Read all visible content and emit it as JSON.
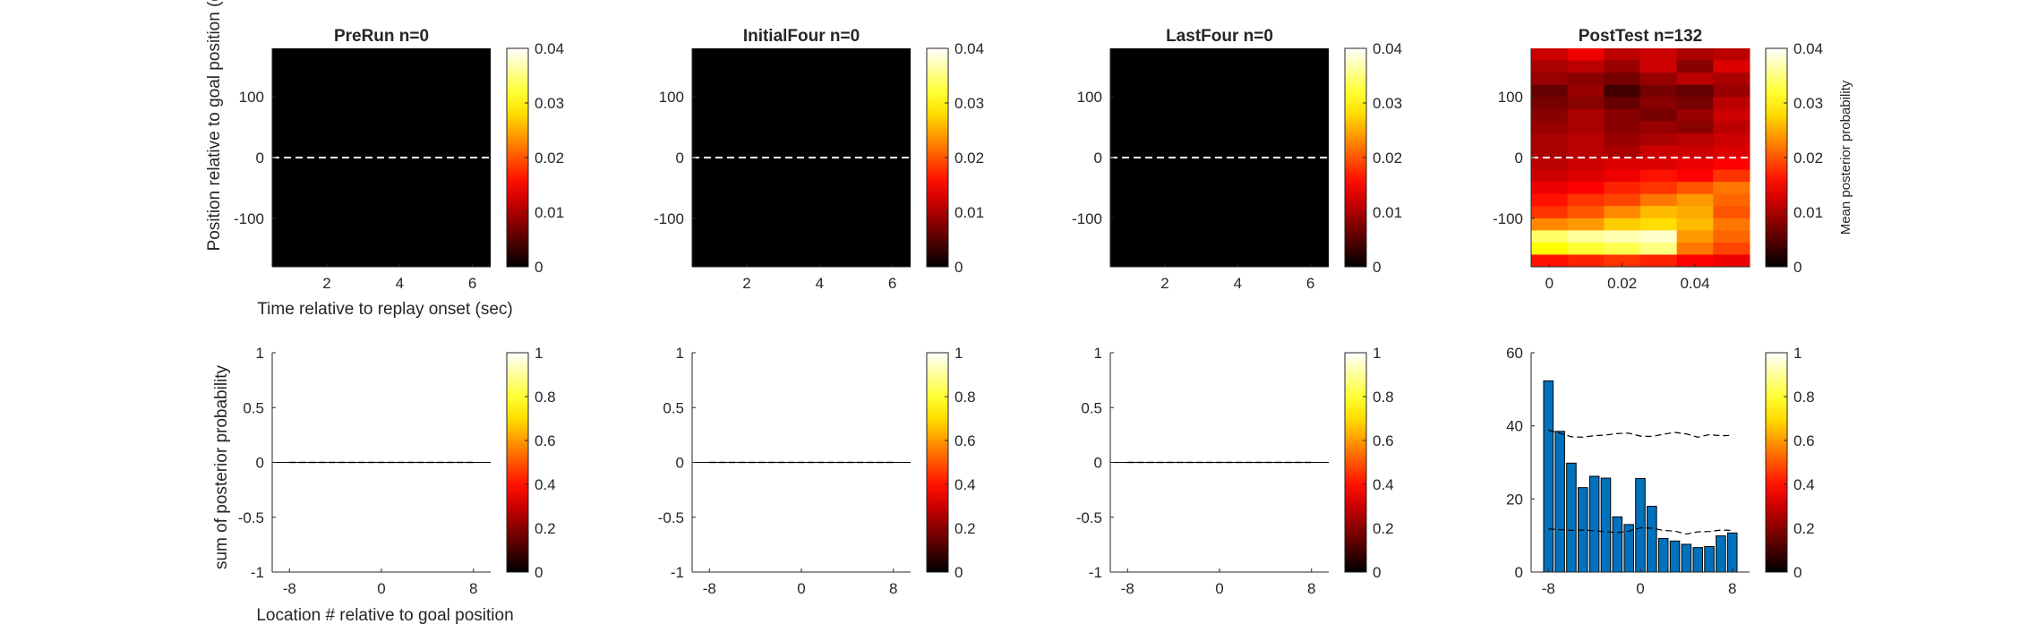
{
  "figure": {
    "ylabel_top": "Position relative to goal position (deg)",
    "xlabel_top": "Time relative to replay onset (sec)",
    "ylabel_bottom": "sum of posterior probability",
    "xlabel_bottom": "Location # relative to goal position",
    "colorbar_label": "Mean posterior probability"
  },
  "colors": {
    "bar": "#0072BD",
    "colormap": "hot",
    "baseline": "#ffffff"
  },
  "chart_data": [
    {
      "type": "heatmap",
      "title": "PreRun n=0",
      "x_ticks": [
        "2",
        "4",
        "6"
      ],
      "y_ticks": [
        "100",
        "0",
        "-100"
      ],
      "xlim": [
        0.5,
        6.5
      ],
      "ylim": [
        -180,
        180
      ],
      "baseline_y": 0,
      "cells": "all zero",
      "colorbar": {
        "ticks": [
          "0",
          "0.01",
          "0.02",
          "0.03",
          "0.04"
        ],
        "clim": [
          0,
          0.04
        ]
      }
    },
    {
      "type": "heatmap",
      "title": "InitialFour n=0",
      "x_ticks": [
        "2",
        "4",
        "6"
      ],
      "y_ticks": [
        "100",
        "0",
        "-100"
      ],
      "xlim": [
        0.5,
        6.5
      ],
      "ylim": [
        -180,
        180
      ],
      "baseline_y": 0,
      "cells": "all zero",
      "colorbar": {
        "ticks": [
          "0",
          "0.01",
          "0.02",
          "0.03",
          "0.04"
        ],
        "clim": [
          0,
          0.04
        ]
      }
    },
    {
      "type": "heatmap",
      "title": "LastFour n=0",
      "x_ticks": [
        "2",
        "4",
        "6"
      ],
      "y_ticks": [
        "100",
        "0",
        "-100"
      ],
      "xlim": [
        0.5,
        6.5
      ],
      "ylim": [
        -180,
        180
      ],
      "baseline_y": 0,
      "cells": "all zero",
      "colorbar": {
        "ticks": [
          "0",
          "0.01",
          "0.02",
          "0.03",
          "0.04"
        ],
        "clim": [
          0,
          0.04
        ]
      }
    },
    {
      "type": "heatmap",
      "title": "PostTest n=132",
      "x_ticks": [
        "0",
        "0.02",
        "0.04"
      ],
      "y_ticks": [
        "100",
        "0",
        "-100"
      ],
      "xlim": [
        -0.005,
        0.055
      ],
      "ylim": [
        -180,
        180
      ],
      "baseline_y": 0,
      "x_centers": [
        0,
        0.01,
        0.02,
        0.03,
        0.04,
        0.05
      ],
      "y_center_top": 170,
      "y_step": 20,
      "values": [
        [
          0.012,
          0.014,
          0.011,
          0.012,
          0.01,
          0.011
        ],
        [
          0.01,
          0.011,
          0.009,
          0.012,
          0.008,
          0.013
        ],
        [
          0.009,
          0.008,
          0.007,
          0.009,
          0.011,
          0.01
        ],
        [
          0.006,
          0.009,
          0.004,
          0.007,
          0.006,
          0.009
        ],
        [
          0.007,
          0.008,
          0.006,
          0.008,
          0.007,
          0.011
        ],
        [
          0.008,
          0.01,
          0.008,
          0.007,
          0.009,
          0.012
        ],
        [
          0.009,
          0.01,
          0.008,
          0.009,
          0.008,
          0.011
        ],
        [
          0.01,
          0.011,
          0.009,
          0.01,
          0.011,
          0.012
        ],
        [
          0.01,
          0.011,
          0.01,
          0.012,
          0.012,
          0.013
        ],
        [
          0.011,
          0.012,
          0.013,
          0.013,
          0.014,
          0.015
        ],
        [
          0.012,
          0.013,
          0.014,
          0.016,
          0.015,
          0.018
        ],
        [
          0.014,
          0.015,
          0.017,
          0.018,
          0.02,
          0.022
        ],
        [
          0.016,
          0.018,
          0.019,
          0.022,
          0.024,
          0.021
        ],
        [
          0.018,
          0.02,
          0.023,
          0.026,
          0.025,
          0.02
        ],
        [
          0.023,
          0.024,
          0.027,
          0.028,
          0.026,
          0.022
        ],
        [
          0.034,
          0.036,
          0.037,
          0.038,
          0.024,
          0.021
        ],
        [
          0.03,
          0.032,
          0.033,
          0.035,
          0.022,
          0.019
        ],
        [
          0.016,
          0.017,
          0.018,
          0.017,
          0.015,
          0.014
        ]
      ],
      "colorbar": {
        "ticks": [
          "0",
          "0.01",
          "0.02",
          "0.03",
          "0.04"
        ],
        "clim": [
          0,
          0.04
        ]
      }
    },
    {
      "type": "bar",
      "title": "",
      "x_ticks": [
        "-8",
        "0",
        "8"
      ],
      "y_ticks": [
        "1",
        "0.5",
        "0",
        "-0.5",
        "-1"
      ],
      "xlim": [
        -9.5,
        9.5
      ],
      "ylim": [
        -1,
        1
      ],
      "categories": [
        -8,
        -7,
        -6,
        -5,
        -4,
        -3,
        -2,
        -1,
        0,
        1,
        2,
        3,
        4,
        5,
        6,
        7,
        8
      ],
      "values": [
        0,
        0,
        0,
        0,
        0,
        0,
        0,
        0,
        0,
        0,
        0,
        0,
        0,
        0,
        0,
        0,
        0
      ],
      "dashed_upper": [
        0,
        0,
        0,
        0,
        0,
        0,
        0,
        0,
        0,
        0,
        0,
        0,
        0,
        0,
        0,
        0,
        0
      ],
      "dashed_lower": [
        0,
        0,
        0,
        0,
        0,
        0,
        0,
        0,
        0,
        0,
        0,
        0,
        0,
        0,
        0,
        0,
        0
      ],
      "colorbar": {
        "ticks": [
          "0",
          "0.2",
          "0.4",
          "0.6",
          "0.8",
          "1"
        ],
        "clim": [
          0,
          1
        ]
      }
    },
    {
      "type": "bar",
      "title": "",
      "x_ticks": [
        "-8",
        "0",
        "8"
      ],
      "y_ticks": [
        "1",
        "0.5",
        "0",
        "-0.5",
        "-1"
      ],
      "xlim": [
        -9.5,
        9.5
      ],
      "ylim": [
        -1,
        1
      ],
      "categories": [
        -8,
        -7,
        -6,
        -5,
        -4,
        -3,
        -2,
        -1,
        0,
        1,
        2,
        3,
        4,
        5,
        6,
        7,
        8
      ],
      "values": [
        0,
        0,
        0,
        0,
        0,
        0,
        0,
        0,
        0,
        0,
        0,
        0,
        0,
        0,
        0,
        0,
        0
      ],
      "dashed_upper": [
        0,
        0,
        0,
        0,
        0,
        0,
        0,
        0,
        0,
        0,
        0,
        0,
        0,
        0,
        0,
        0,
        0
      ],
      "dashed_lower": [
        0,
        0,
        0,
        0,
        0,
        0,
        0,
        0,
        0,
        0,
        0,
        0,
        0,
        0,
        0,
        0,
        0
      ],
      "colorbar": {
        "ticks": [
          "0",
          "0.2",
          "0.4",
          "0.6",
          "0.8",
          "1"
        ],
        "clim": [
          0,
          1
        ]
      }
    },
    {
      "type": "bar",
      "title": "",
      "x_ticks": [
        "-8",
        "0",
        "8"
      ],
      "y_ticks": [
        "1",
        "0.5",
        "0",
        "-0.5",
        "-1"
      ],
      "xlim": [
        -9.5,
        9.5
      ],
      "ylim": [
        -1,
        1
      ],
      "categories": [
        -8,
        -7,
        -6,
        -5,
        -4,
        -3,
        -2,
        -1,
        0,
        1,
        2,
        3,
        4,
        5,
        6,
        7,
        8
      ],
      "values": [
        0,
        0,
        0,
        0,
        0,
        0,
        0,
        0,
        0,
        0,
        0,
        0,
        0,
        0,
        0,
        0,
        0
      ],
      "dashed_upper": [
        0,
        0,
        0,
        0,
        0,
        0,
        0,
        0,
        0,
        0,
        0,
        0,
        0,
        0,
        0,
        0,
        0
      ],
      "dashed_lower": [
        0,
        0,
        0,
        0,
        0,
        0,
        0,
        0,
        0,
        0,
        0,
        0,
        0,
        0,
        0,
        0,
        0
      ],
      "colorbar": {
        "ticks": [
          "0",
          "0.2",
          "0.4",
          "0.6",
          "0.8",
          "1"
        ],
        "clim": [
          0,
          1
        ]
      }
    },
    {
      "type": "bar",
      "title": "",
      "x_ticks": [
        "-8",
        "0",
        "8"
      ],
      "y_ticks": [
        "60",
        "40",
        "20",
        "0"
      ],
      "xlim": [
        -9.5,
        9.5
      ],
      "ylim": [
        0,
        60
      ],
      "categories": [
        -8,
        -7,
        -6,
        -5,
        -4,
        -3,
        -2,
        -1,
        0,
        1,
        2,
        3,
        4,
        5,
        6,
        7,
        8
      ],
      "values": [
        52.3,
        38.5,
        29.8,
        23.1,
        26.2,
        25.7,
        15.1,
        13.0,
        25.6,
        18.0,
        9.2,
        8.5,
        7.6,
        6.7,
        7.0,
        9.9,
        10.7
      ],
      "dashed_upper": [
        38.8,
        38.0,
        37.0,
        36.9,
        37.3,
        37.5,
        37.9,
        38.0,
        37.2,
        37.1,
        37.7,
        38.2,
        37.8,
        36.9,
        37.6,
        37.3,
        37.4
      ],
      "dashed_lower": [
        11.8,
        11.6,
        11.4,
        11.5,
        11.3,
        11.0,
        10.8,
        11.2,
        12.1,
        12.0,
        11.4,
        11.2,
        10.4,
        11.0,
        11.1,
        11.5,
        11.4
      ],
      "colorbar": {
        "ticks": [
          "0",
          "0.2",
          "0.4",
          "0.6",
          "0.8",
          "1"
        ],
        "clim": [
          0,
          1
        ]
      }
    }
  ]
}
